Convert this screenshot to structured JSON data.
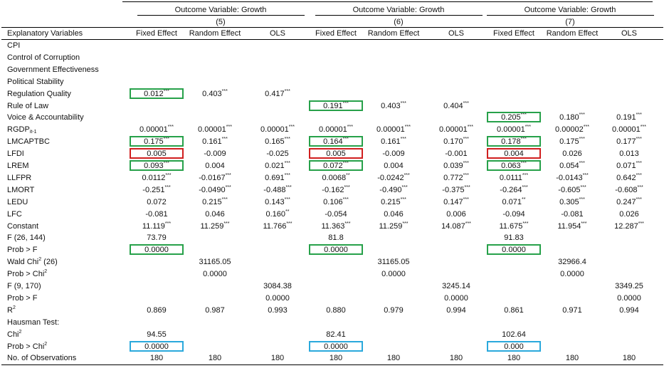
{
  "header": {
    "groups": [
      {
        "title": "Outcome Variable: Growth",
        "model": "(5)"
      },
      {
        "title": "Outcome Variable: Growth",
        "model": "(6)"
      },
      {
        "title": "Outcome Variable: Growth",
        "model": "(7)"
      }
    ],
    "row_header": "Explanatory Variables",
    "estimators": [
      "Fixed Effect",
      "Random Effect",
      "OLS",
      "Fixed Effect",
      "Random Effect",
      "OLS",
      "Fixed Effect",
      "Random Effect",
      "OLS"
    ]
  },
  "rows": [
    {
      "label": "CPI",
      "cells": [
        "",
        "",
        "",
        "",
        "",
        "",
        "",
        "",
        ""
      ]
    },
    {
      "label": "Control of Corruption",
      "cells": [
        "",
        "",
        "",
        "",
        "",
        "",
        "",
        "",
        ""
      ]
    },
    {
      "label": "Government Effectiveness",
      "cells": [
        "",
        "",
        "",
        "",
        "",
        "",
        "",
        "",
        ""
      ]
    },
    {
      "label": "Political Stability",
      "cells": [
        "",
        "",
        "",
        "",
        "",
        "",
        "",
        "",
        ""
      ]
    },
    {
      "label": "Regulation Quality",
      "cells": [
        "0.012***",
        "0.403***",
        "0.417***",
        "",
        "",
        "",
        "",
        "",
        ""
      ]
    },
    {
      "label": "Rule of Law",
      "cells": [
        "",
        "",
        "",
        "0.191***",
        "0.403***",
        "0.404***",
        "",
        "",
        ""
      ]
    },
    {
      "label": "Voice & Accountability",
      "cells": [
        "",
        "",
        "",
        "",
        "",
        "",
        "0.205***",
        "0.180***",
        "0.191***"
      ]
    },
    {
      "label": "RGDP",
      "label_sub": "it-1",
      "cells": [
        "0.00001***",
        "0.00001***",
        "0.00001***",
        "0.00001***",
        "0.00001***",
        "0.00001***",
        "0.00001***",
        "0.00002***",
        "0.00001***"
      ]
    },
    {
      "label": "LMCAPTBC",
      "cells": [
        "0.175***",
        "0.161***",
        "0.165***",
        "0.164***",
        "0.161***",
        "0.170***",
        "0.178***",
        "0.175***",
        "0.177***"
      ]
    },
    {
      "label": "LFDI",
      "cells": [
        "0.005",
        "-0.009",
        "-0.025",
        "0.005",
        "-0.009",
        "-0.001",
        "0.004",
        "0.026",
        "0.013"
      ]
    },
    {
      "label": "LREM",
      "cells": [
        "0.093***",
        "0.004",
        "0.021***",
        "0.072***",
        "0.004",
        "0.039***",
        "0.063***",
        "0.054***",
        "0.071***"
      ]
    },
    {
      "label": "LLFPR",
      "cells": [
        "0.0112***",
        "-0.0167***",
        "0.691***",
        "0.0068**",
        "-0.0242***",
        "0.772***",
        "0.0111***",
        "-0.0143***",
        "0.642***"
      ]
    },
    {
      "label": "LMORT",
      "cells": [
        "-0.251***",
        "-0.0490***",
        "-0.488***",
        "-0.162***",
        "-0.490***",
        "-0.375***",
        "-0.264***",
        "-0.605***",
        "-0.608***"
      ]
    },
    {
      "label": "LEDU",
      "cells": [
        "0.072",
        "0.215***",
        "0.143***",
        "0.106***",
        "0.215***",
        "0.147***",
        "0.071**",
        "0.305***",
        "0.247***"
      ]
    },
    {
      "label": "LFC",
      "cells": [
        "-0.081",
        "0.046",
        "0.160**",
        "-0.054",
        "0.046",
        "0.006",
        "-0.094",
        "-0.081",
        "0.026"
      ]
    },
    {
      "label": "Constant",
      "cells": [
        "11.119***",
        "11.259***",
        "11.766***",
        "11.363***",
        "11.259***",
        "14.087***",
        "11.675***",
        "11.954***",
        "12.287***"
      ]
    },
    {
      "label": "F (26, 144)",
      "cells": [
        "73.79",
        "",
        "",
        "81.8",
        "",
        "",
        "91.83",
        "",
        ""
      ]
    },
    {
      "label": "Prob > F",
      "cells": [
        "0.0000",
        "",
        "",
        "0.0000",
        "",
        "",
        "0.0000",
        "",
        ""
      ]
    },
    {
      "label": "Wald Chi",
      "label_sup": "2",
      "label_after": " (26)",
      "cells": [
        "",
        "31165.05",
        "",
        "",
        "31165.05",
        "",
        "",
        "32966.4",
        ""
      ]
    },
    {
      "label": "Prob > Chi",
      "label_sup": "2",
      "cells": [
        "",
        "0.0000",
        "",
        "",
        "0.0000",
        "",
        "",
        "0.0000",
        ""
      ]
    },
    {
      "label": "F (9, 170)",
      "cells": [
        "",
        "",
        "3084.38",
        "",
        "",
        "3245.14",
        "",
        "",
        "3349.25"
      ]
    },
    {
      "label": "Prob > F",
      "cells": [
        "",
        "",
        "0.0000",
        "",
        "",
        "0.0000",
        "",
        "",
        "0.0000"
      ]
    },
    {
      "label": "R",
      "label_sup": "2",
      "cells": [
        "0.869",
        "0.987",
        "0.993",
        "0.880",
        "0.979",
        "0.994",
        "0.861",
        "0.971",
        "0.994"
      ]
    },
    {
      "label": "Hausman Test:",
      "cells": [
        "",
        "",
        "",
        "",
        "",
        "",
        "",
        "",
        ""
      ]
    },
    {
      "label": "Chi",
      "label_sup": "2",
      "cells": [
        "94.55",
        "",
        "",
        "82.41",
        "",
        "",
        "102.64",
        "",
        ""
      ]
    },
    {
      "label": "Prob > Chi",
      "label_sup": "2",
      "cells": [
        "0.0000",
        "",
        "",
        "0.0000",
        "",
        "",
        "0.000",
        "",
        ""
      ]
    },
    {
      "label": "No. of Observations",
      "cells": [
        "180",
        "180",
        "180",
        "180",
        "180",
        "180",
        "180",
        "180",
        "180"
      ]
    }
  ],
  "highlights": [
    {
      "row": 4,
      "col": 0,
      "color": "green"
    },
    {
      "row": 5,
      "col": 3,
      "color": "green"
    },
    {
      "row": 6,
      "col": 6,
      "color": "green"
    },
    {
      "row": 8,
      "col": 0,
      "color": "green"
    },
    {
      "row": 8,
      "col": 3,
      "color": "green"
    },
    {
      "row": 8,
      "col": 6,
      "color": "green"
    },
    {
      "row": 9,
      "col": 0,
      "color": "red"
    },
    {
      "row": 9,
      "col": 3,
      "color": "red"
    },
    {
      "row": 9,
      "col": 6,
      "color": "red"
    },
    {
      "row": 10,
      "col": 0,
      "color": "green"
    },
    {
      "row": 10,
      "col": 3,
      "color": "green"
    },
    {
      "row": 10,
      "col": 6,
      "color": "green"
    },
    {
      "row": 17,
      "col": 0,
      "color": "green"
    },
    {
      "row": 17,
      "col": 3,
      "color": "green"
    },
    {
      "row": 17,
      "col": 6,
      "color": "green"
    },
    {
      "row": 25,
      "col": 0,
      "color": "blue"
    },
    {
      "row": 25,
      "col": 3,
      "color": "blue"
    },
    {
      "row": 25,
      "col": 6,
      "color": "blue"
    }
  ],
  "colors": {
    "green": "#27a14a",
    "red": "#d01f1f",
    "blue": "#2aa9dc"
  }
}
